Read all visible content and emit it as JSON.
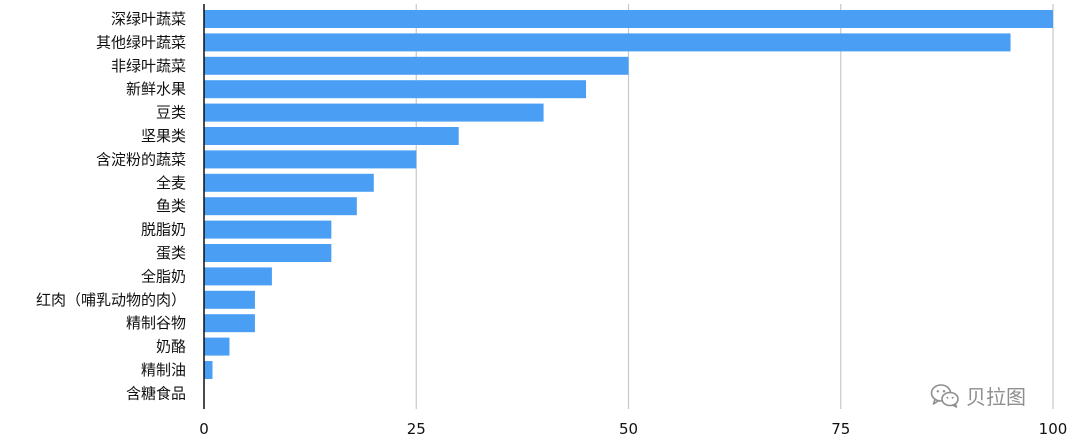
{
  "chart_data": {
    "type": "bar",
    "orientation": "horizontal",
    "categories": [
      "深绿叶蔬菜",
      "其他绿叶蔬菜",
      "非绿叶蔬菜",
      "新鲜水果",
      "豆类",
      "坚果类",
      "含淀粉的蔬菜",
      "全麦",
      "鱼类",
      "脱脂奶",
      "蛋类",
      "全脂奶",
      "红肉（哺乳动物的肉）",
      "精制谷物",
      "奶酪",
      "精制油",
      "含糖食品"
    ],
    "values": [
      100,
      95,
      50,
      45,
      40,
      30,
      25,
      20,
      18,
      15,
      15,
      8,
      6,
      6,
      3,
      1,
      0
    ],
    "xlim": [
      0,
      100
    ],
    "xticks": [
      0,
      25,
      50,
      75,
      100
    ],
    "grid": "vertical",
    "bar_color": "#4a9ff5",
    "grid_color": "#c8c8c8",
    "axis_color": "#111111"
  },
  "watermark": {
    "text": "贝拉图",
    "icon": "wechat-icon"
  }
}
